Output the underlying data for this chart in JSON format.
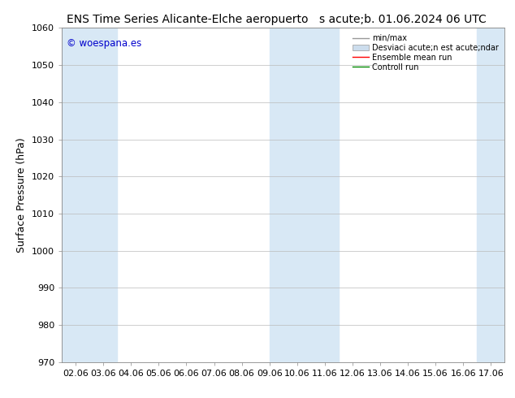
{
  "title_left": "ENS Time Series Alicante-Elche aeropuerto",
  "title_right": "s acute;b. 01.06.2024 06 UTC",
  "ylabel": "Surface Pressure (hPa)",
  "ylim": [
    970,
    1060
  ],
  "yticks": [
    970,
    980,
    990,
    1000,
    1010,
    1020,
    1030,
    1040,
    1050,
    1060
  ],
  "x_labels": [
    "02.06",
    "03.06",
    "04.06",
    "05.06",
    "06.06",
    "07.06",
    "08.06",
    "09.06",
    "10.06",
    "11.06",
    "12.06",
    "13.06",
    "14.06",
    "15.06",
    "16.06",
    "17.06"
  ],
  "bg_color": "#ffffff",
  "band_color": "#d8e8f5",
  "watermark": "© woespana.es",
  "watermark_color": "#0000cc",
  "legend_line1_label": "min/max",
  "legend_line1_color": "#999999",
  "legend_patch_label": "Desviaci acute;n est acute;ndar",
  "legend_patch_color": "#ccdded",
  "legend_line3_label": "Ensemble mean run",
  "legend_line3_color": "#ff0000",
  "legend_line4_label": "Controll run",
  "legend_line4_color": "#008800",
  "grid_color": "#bbbbbb",
  "shaded_ranges": [
    [
      -0.5,
      1.5
    ],
    [
      7.0,
      9.5
    ],
    [
      14.5,
      15.6
    ]
  ],
  "title_fontsize": 10,
  "ylabel_fontsize": 9,
  "tick_fontsize": 8
}
